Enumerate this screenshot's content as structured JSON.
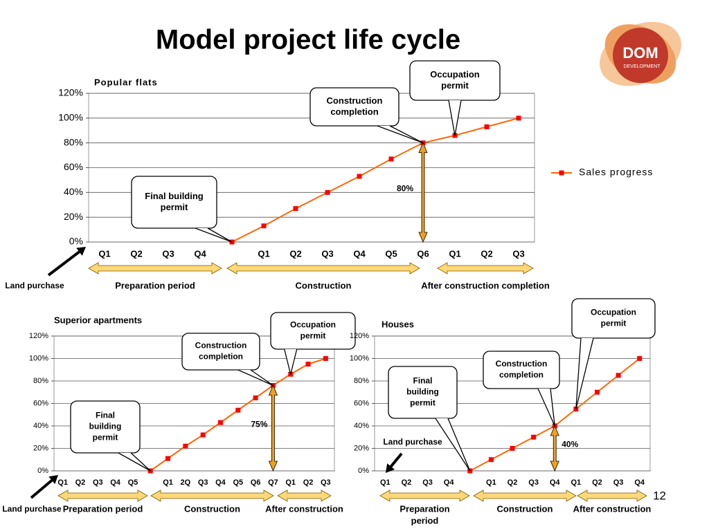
{
  "title": "Model project life cycle",
  "logo": {
    "name": "DOM",
    "subtitle": "DEVELOPMENT"
  },
  "page_number": "12",
  "chart_data": [
    {
      "type": "line",
      "title": "Popular flats",
      "categories": [
        "Q1",
        "Q2",
        "Q3",
        "Q4",
        null,
        "Q1",
        "Q2",
        "Q3",
        "Q4",
        "Q5",
        "Q6",
        "Q1",
        "Q2",
        "Q3"
      ],
      "series": [
        {
          "name": "Sales progress",
          "color": "#ff6600",
          "marker_color": "#ff0000",
          "values": [
            null,
            null,
            null,
            null,
            0,
            13,
            27,
            40,
            53,
            67,
            80,
            86,
            93,
            100
          ]
        }
      ],
      "ylim": [
        0,
        120
      ],
      "yticks": [
        {
          "value": 0,
          "label": "0%"
        },
        {
          "value": 20,
          "label": "20%"
        },
        {
          "value": 40,
          "label": "40%"
        },
        {
          "value": 60,
          "label": "60%"
        },
        {
          "value": 80,
          "label": "80%"
        },
        {
          "value": 100,
          "label": "100%"
        },
        {
          "value": 120,
          "label": "120%"
        }
      ],
      "grid": true,
      "legend": "right",
      "callouts": [
        {
          "lines": [
            "Final building",
            "permit"
          ]
        },
        {
          "lines": [
            "Construction",
            "completion"
          ]
        },
        {
          "lines": [
            "Occupation",
            "permit"
          ]
        }
      ],
      "highlight_label": "80%",
      "land_purchase": "Land purchase",
      "periods": [
        {
          "lines": [
            "Preparation period"
          ]
        },
        {
          "lines": [
            "Construction"
          ]
        },
        {
          "lines": [
            "After construction completion"
          ]
        }
      ]
    },
    {
      "type": "line",
      "title": "Superior apartments",
      "categories": [
        "Q1",
        "Q2",
        "Q3",
        "Q4",
        "Q5",
        null,
        "Q1",
        "2Q",
        "Q3",
        "Q4",
        "Q5",
        "Q6",
        "Q7",
        "Q1",
        "Q2",
        "Q3"
      ],
      "series": [
        {
          "name": "Sales progress",
          "color": "#ff6600",
          "marker_color": "#ff0000",
          "values": [
            null,
            null,
            null,
            null,
            null,
            0,
            11,
            22,
            32,
            43,
            54,
            65,
            76,
            86,
            95,
            100
          ]
        }
      ],
      "ylim": [
        0,
        120
      ],
      "yticks": [
        {
          "value": 0,
          "label": "0%"
        },
        {
          "value": 20,
          "label": "20%"
        },
        {
          "value": 40,
          "label": "40%"
        },
        {
          "value": 60,
          "label": "60%"
        },
        {
          "value": 80,
          "label": "80%"
        },
        {
          "value": 100,
          "label": "100%"
        },
        {
          "value": 120,
          "label": "120%"
        }
      ],
      "grid": true,
      "callouts": [
        {
          "lines": [
            "Final",
            "building",
            "permit"
          ]
        },
        {
          "lines": [
            "Construction",
            "completion"
          ]
        },
        {
          "lines": [
            "Occupation",
            "permit"
          ]
        }
      ],
      "highlight_label": "75%",
      "land_purchase": "Land purchase",
      "periods": [
        {
          "lines": [
            "Preparation period"
          ]
        },
        {
          "lines": [
            "Construction"
          ]
        },
        {
          "lines": [
            "After construction"
          ]
        }
      ]
    },
    {
      "type": "line",
      "title": "Houses",
      "categories": [
        "Q1",
        "Q2",
        "Q3",
        "Q4",
        null,
        "Q1",
        "Q2",
        "Q3",
        "Q4",
        "Q1",
        "Q2",
        "Q3",
        "Q4"
      ],
      "series": [
        {
          "name": "Sales progress",
          "color": "#ff6600",
          "marker_color": "#ff0000",
          "values": [
            null,
            null,
            null,
            null,
            0,
            10,
            20,
            30,
            40,
            55,
            70,
            85,
            100
          ]
        }
      ],
      "ylim": [
        0,
        120
      ],
      "yticks": [
        {
          "value": 0,
          "label": "0%"
        },
        {
          "value": 20,
          "label": "20%"
        },
        {
          "value": 40,
          "label": "40%"
        },
        {
          "value": 60,
          "label": "60%"
        },
        {
          "value": 80,
          "label": "80%"
        },
        {
          "value": 100,
          "label": "100%"
        },
        {
          "value": 120,
          "label": "120%"
        }
      ],
      "grid": true,
      "callouts": [
        {
          "lines": [
            "Final",
            "building",
            "permit"
          ]
        },
        {
          "lines": [
            "Construction",
            "completion"
          ]
        },
        {
          "lines": [
            "Occupation",
            "permit"
          ]
        }
      ],
      "highlight_label": "40%",
      "land_purchase": "Land purchase",
      "periods": [
        {
          "lines": [
            "Preparation",
            "period"
          ]
        },
        {
          "lines": [
            "Construction"
          ]
        },
        {
          "lines": [
            "After construction"
          ]
        }
      ]
    }
  ]
}
